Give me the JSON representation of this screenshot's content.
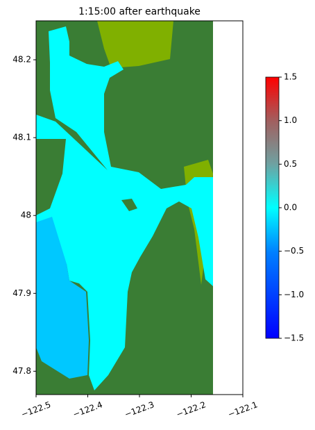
{
  "chart_data": {
    "type": "heatmap",
    "title": "1:15:00 after earthquake",
    "xlim": [
      -122.5,
      -122.1
    ],
    "xticks": [
      {
        "value": -122.5,
        "label": "−122.5"
      },
      {
        "value": -122.4,
        "label": "−122.4"
      },
      {
        "value": -122.3,
        "label": "−122.3"
      },
      {
        "value": -122.2,
        "label": "−122.2"
      },
      {
        "value": -122.1,
        "label": "−122.1"
      }
    ],
    "ylim": [
      47.77,
      48.25
    ],
    "yticks": [
      47.8,
      47.9,
      48.0,
      48.1,
      48.2
    ],
    "colorbar": {
      "lim": [
        -1.5,
        1.5
      ],
      "ticks": [
        {
          "value": -1.5,
          "label": "−1.5"
        },
        {
          "value": -1.0,
          "label": "−1.0"
        },
        {
          "value": -0.5,
          "label": "−0.5"
        },
        {
          "value": 0.0,
          "label": "0.0"
        },
        {
          "value": 0.5,
          "label": "0.5"
        },
        {
          "value": 1.0,
          "label": "1.0"
        },
        {
          "value": 1.5,
          "label": "1.5"
        }
      ]
    }
  }
}
